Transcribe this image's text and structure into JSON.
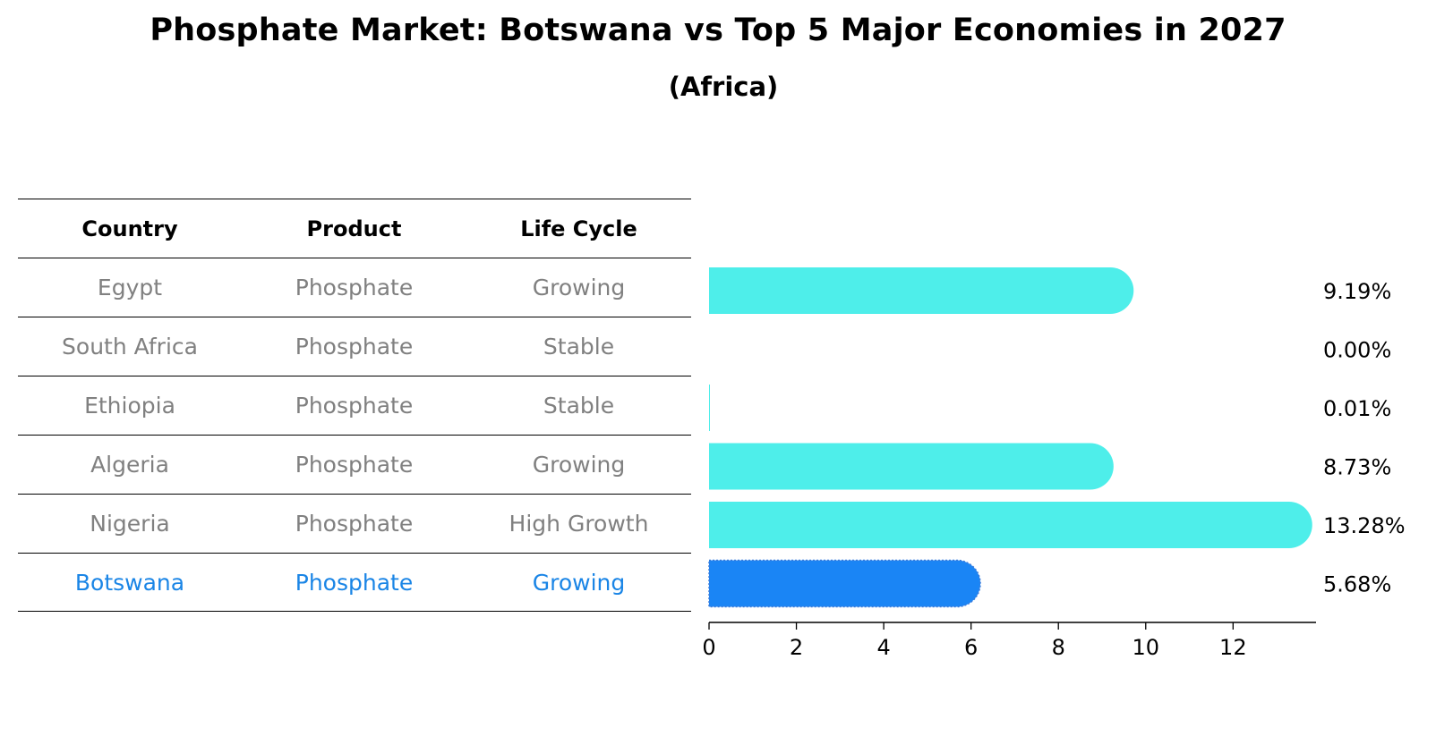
{
  "header": {
    "title": "Phosphate Market: Botswana vs Top 5 Major Economies in 2027",
    "subtitle": "(Africa)"
  },
  "table": {
    "columns": [
      "Country",
      "Product",
      "Life Cycle"
    ],
    "rows": [
      {
        "country": "Egypt",
        "product": "Phosphate",
        "life_cycle": "Growing"
      },
      {
        "country": "South Africa",
        "product": "Phosphate",
        "life_cycle": "Stable"
      },
      {
        "country": "Ethiopia",
        "product": "Phosphate",
        "life_cycle": "Stable"
      },
      {
        "country": "Algeria",
        "product": "Phosphate",
        "life_cycle": "Growing"
      },
      {
        "country": "Nigeria",
        "product": "Phosphate",
        "life_cycle": "High Growth"
      },
      {
        "country": "Botswana",
        "product": "Phosphate",
        "life_cycle": "Growing"
      }
    ]
  },
  "chart_data": {
    "type": "bar",
    "orientation": "horizontal",
    "title": "Phosphate Market: Botswana vs Top 5 Major Economies in 2027",
    "subtitle": "(Africa)",
    "categories": [
      "Egypt",
      "South Africa",
      "Ethiopia",
      "Algeria",
      "Nigeria",
      "Botswana"
    ],
    "values": [
      9.19,
      0.0,
      0.01,
      8.73,
      13.28,
      5.68
    ],
    "value_labels": [
      "9.19%",
      "0.00%",
      "0.01%",
      "8.73%",
      "13.28%",
      "5.68%"
    ],
    "highlight": "Botswana",
    "xlim": [
      0,
      13.9
    ],
    "xticks": [
      0,
      2,
      4,
      6,
      8,
      10,
      12
    ],
    "xlabel": "",
    "ylabel": "",
    "grid": false,
    "colors": {
      "bar": "#4eeeea",
      "highlight": "#1a85f5"
    }
  }
}
